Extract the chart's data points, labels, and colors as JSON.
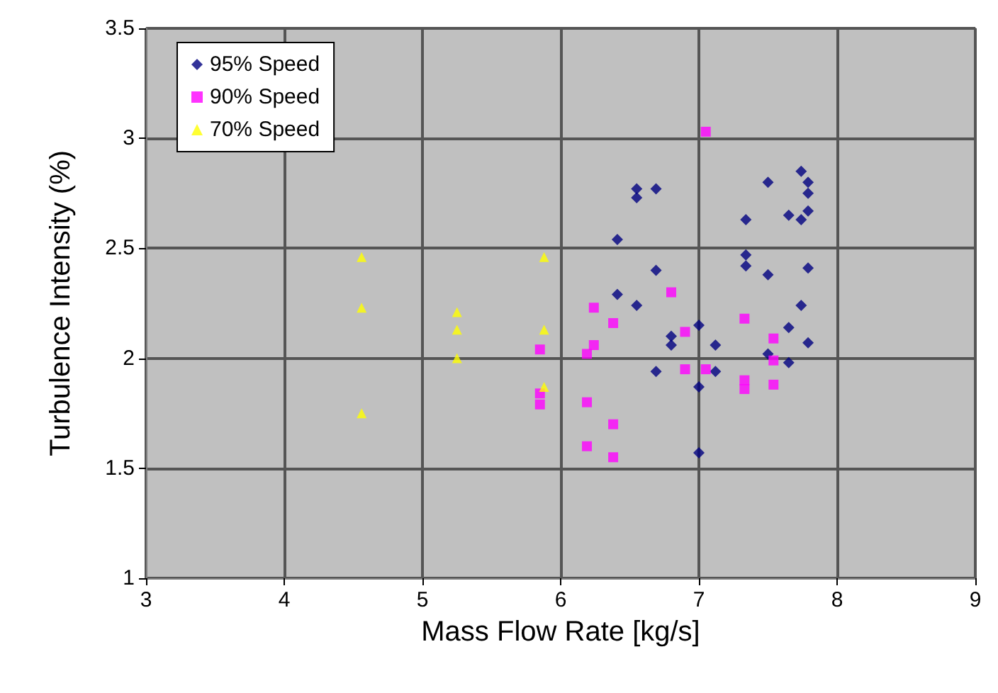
{
  "chart_data": {
    "type": "scatter",
    "xlabel": "Mass Flow Rate [kg/s]",
    "ylabel": "Turbulence Intensity (%)",
    "xlim": [
      3,
      9
    ],
    "xticks": [
      3,
      4,
      5,
      6,
      7,
      8,
      9
    ],
    "ylim": [
      1,
      3.5
    ],
    "yticks": [
      1,
      1.5,
      2,
      2.5,
      3,
      3.5
    ],
    "grid": true,
    "legend": "top left",
    "series": [
      {
        "name": "95% Speed",
        "color": "#000080",
        "marker": "diamond",
        "x": [
          7.74,
          7.79,
          7.5,
          7.79,
          6.55,
          6.55,
          6.69,
          7.79,
          7.65,
          7.74,
          7.34,
          6.41,
          7.34,
          7.34,
          7.79,
          7.5,
          6.69,
          6.41,
          6.55,
          7.74,
          7.0,
          7.65,
          6.8,
          6.8,
          7.12,
          7.79,
          7.5,
          7.65,
          6.69,
          7.12,
          7.0,
          7.0
        ],
        "values": [
          2.85,
          2.8,
          2.8,
          2.75,
          2.77,
          2.73,
          2.77,
          2.67,
          2.65,
          2.63,
          2.63,
          2.54,
          2.47,
          2.42,
          2.41,
          2.38,
          2.4,
          2.29,
          2.24,
          2.24,
          2.15,
          2.14,
          2.1,
          2.06,
          2.06,
          2.07,
          2.02,
          1.98,
          1.94,
          1.94,
          1.87,
          1.57
        ]
      },
      {
        "name": "90% Speed",
        "color": "#ff00ff",
        "marker": "square",
        "x": [
          7.05,
          6.8,
          6.24,
          6.38,
          6.24,
          6.19,
          6.9,
          6.9,
          7.05,
          7.33,
          7.33,
          7.33,
          7.54,
          7.54,
          7.54,
          6.19,
          6.38,
          6.19,
          6.38,
          5.85,
          5.85,
          5.85
        ],
        "values": [
          3.03,
          2.3,
          2.23,
          2.16,
          2.06,
          2.02,
          2.12,
          1.95,
          1.95,
          2.18,
          1.9,
          1.86,
          2.09,
          1.99,
          1.88,
          1.8,
          1.7,
          1.6,
          1.55,
          2.04,
          1.84,
          1.79
        ]
      },
      {
        "name": "70% Speed",
        "color": "#ffff00",
        "marker": "triangle",
        "x": [
          4.56,
          4.56,
          4.56,
          5.25,
          5.25,
          5.25,
          5.88,
          5.88,
          5.88
        ],
        "values": [
          2.46,
          2.23,
          1.75,
          2.21,
          2.13,
          2.0,
          2.46,
          2.13,
          1.87
        ]
      }
    ]
  }
}
